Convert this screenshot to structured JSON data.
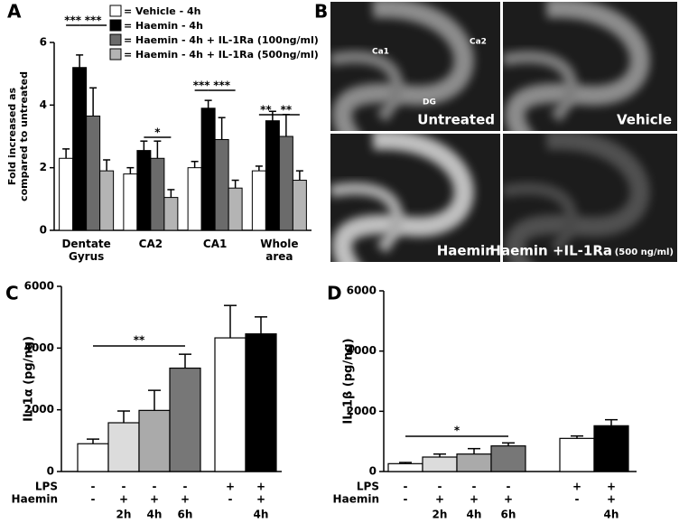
{
  "chart_data": [
    {
      "type": "grouped_bar",
      "panel": "A",
      "ylabel": [
        "Fold increased as",
        "compared to untreated"
      ],
      "categories": [
        "Dentate Gyrus",
        "CA2",
        "CA1",
        "Whole area"
      ],
      "ylim": [
        0,
        6
      ],
      "yticks": [
        0,
        2,
        4,
        6
      ],
      "series": [
        {
          "name": "= Vehicle - 4h",
          "color": "#ffffff",
          "values": [
            2.3,
            1.8,
            2.0,
            1.9
          ],
          "errors": [
            0.3,
            0.2,
            0.2,
            0.15
          ]
        },
        {
          "name": "= Haemin - 4h",
          "color": "#000000",
          "values": [
            5.2,
            2.55,
            3.9,
            3.5
          ],
          "errors": [
            0.4,
            0.3,
            0.25,
            0.3
          ]
        },
        {
          "name": "= Haemin - 4h + IL-1Ra (100ng/ml)",
          "color": "#6b6b6b",
          "values": [
            3.65,
            2.3,
            2.9,
            3.0
          ],
          "errors": [
            0.9,
            0.55,
            0.7,
            0.7
          ]
        },
        {
          "name": "= Haemin - 4h + IL-1Ra (500ng/ml)",
          "color": "#b4b4b4",
          "values": [
            1.9,
            1.05,
            1.35,
            1.6
          ],
          "errors": [
            0.35,
            0.25,
            0.25,
            0.3
          ]
        }
      ],
      "annotations": [
        "***",
        "***",
        "*",
        "***",
        "***",
        "**",
        "**"
      ]
    },
    {
      "type": "bar",
      "panel": "C",
      "ylabel": "IL-1α (pg/ng)",
      "ylim": [
        0,
        6000
      ],
      "yticks": [
        0,
        2000,
        4000,
        6000
      ],
      "values": [
        900,
        1580,
        1980,
        3350,
        4330,
        4460
      ],
      "errors": [
        150,
        380,
        650,
        450,
        1050,
        550
      ],
      "colors": [
        "#ffffff",
        "#dcdcdc",
        "#aaaaaa",
        "#777777",
        "#ffffff",
        "#000000"
      ],
      "rows": [
        {
          "label": "LPS",
          "cells": [
            "-",
            "-",
            "-",
            "-",
            "+",
            "+"
          ]
        },
        {
          "label": "Haemin",
          "cells": [
            "-",
            "+",
            "+",
            "+",
            "-",
            "+"
          ]
        }
      ],
      "time": [
        null,
        "2h",
        "4h",
        "6h",
        null,
        "4h"
      ],
      "annotations": [
        "**"
      ]
    },
    {
      "type": "bar",
      "panel": "D",
      "ylabel": "IL-1β (pg/ng)",
      "ylim": [
        0,
        6000
      ],
      "yticks": [
        0,
        2000,
        4000,
        6000
      ],
      "values": [
        260,
        480,
        580,
        850,
        1100,
        1520
      ],
      "errors": [
        40,
        100,
        180,
        100,
        80,
        200
      ],
      "colors": [
        "#ffffff",
        "#dcdcdc",
        "#aaaaaa",
        "#777777",
        "#ffffff",
        "#000000"
      ],
      "rows": [
        {
          "label": "LPS",
          "cells": [
            "-",
            "-",
            "-",
            "-",
            "+",
            "+"
          ]
        },
        {
          "label": "Haemin",
          "cells": [
            "-",
            "+",
            "+",
            "+",
            "-",
            "+"
          ]
        }
      ],
      "time": [
        null,
        "2h",
        "4h",
        "6h",
        null,
        "4h"
      ],
      "annotations": [
        "*"
      ]
    }
  ],
  "panel_b": {
    "panel": "B",
    "images": [
      {
        "label": "Untreated",
        "regions": [
          "Ca1",
          "Ca2",
          "DG"
        ]
      },
      {
        "label": "Vehicle"
      },
      {
        "label": "Haemin"
      },
      {
        "label": "Haemin +IL-1Ra",
        "note": "(500 ng/ml)"
      }
    ]
  }
}
